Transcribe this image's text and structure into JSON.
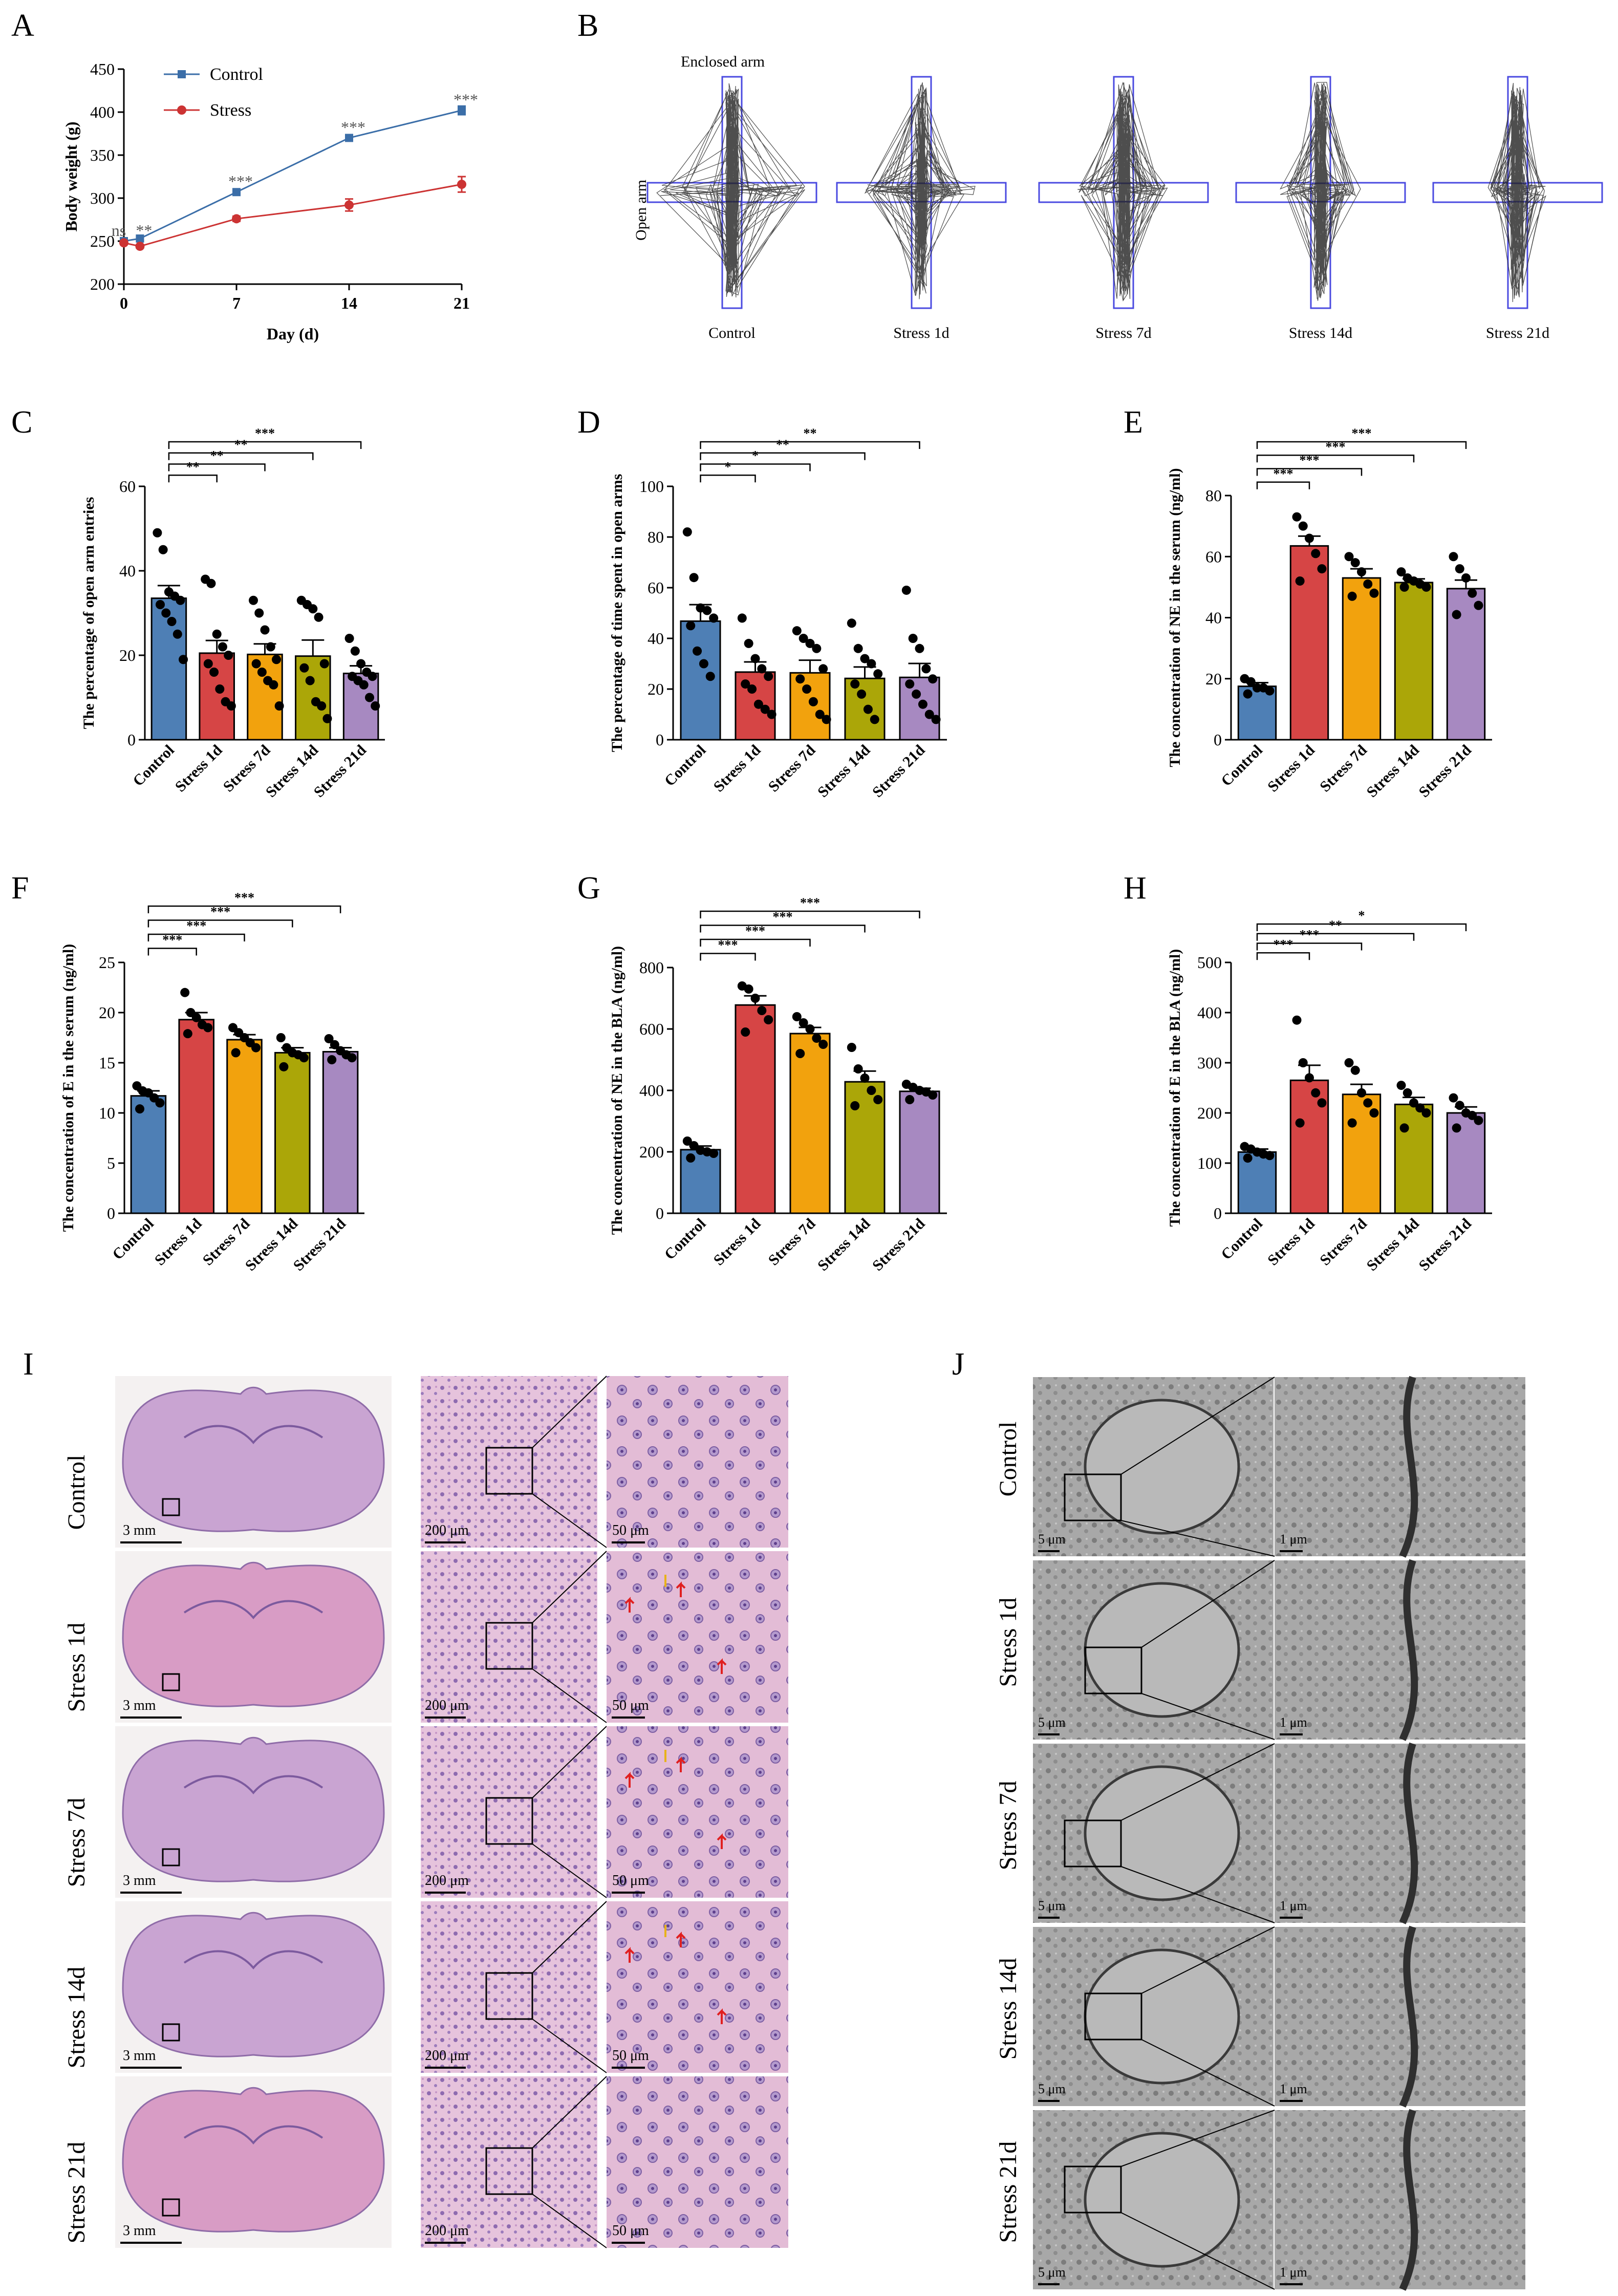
{
  "colors": {
    "control": "#4E7FB5",
    "stress1": "#D64545",
    "stress7": "#F2A20D",
    "stress14": "#ABA608",
    "stress21": "#A789C1",
    "line_control": "#3B6EA8",
    "line_stress": "#CC3333",
    "track_box": "#4A4AE0",
    "tissue": "#D9A6CF",
    "tem": "#9A9A9A"
  },
  "panel_letters": {
    "A": "A",
    "B": "B",
    "C": "C",
    "D": "D",
    "E": "E",
    "F": "F",
    "G": "G",
    "H": "H",
    "I": "I",
    "J": "J"
  },
  "chart_data": [
    {
      "id": "A",
      "type": "line",
      "xlabel": "Day (d)",
      "ylabel": "Body weight (g)",
      "xlim": [
        0,
        21
      ],
      "ylim": [
        200,
        450
      ],
      "xticks": [
        "0",
        "7",
        "14",
        "21"
      ],
      "yticks": [
        "200",
        "250",
        "300",
        "350",
        "400",
        "450"
      ],
      "legend": [
        "Control",
        "Stress"
      ],
      "series": [
        {
          "name": "Control",
          "x": [
            0,
            1,
            7,
            14,
            21
          ],
          "values": [
            250,
            253,
            307,
            370,
            402
          ],
          "err": [
            2,
            2,
            2,
            3,
            5
          ]
        },
        {
          "name": "Stress",
          "x": [
            0,
            1,
            7,
            14,
            21
          ],
          "values": [
            248,
            244,
            276,
            292,
            316
          ],
          "err": [
            2,
            2,
            3,
            7,
            9
          ]
        }
      ],
      "annotations": [
        {
          "label": "ns",
          "x": 0,
          "y": 256
        },
        {
          "label": "**",
          "x": 1,
          "y": 256
        },
        {
          "label": "***",
          "x": 7,
          "y": 313
        },
        {
          "label": "***",
          "x": 14,
          "y": 376
        },
        {
          "label": "***",
          "x": 21,
          "y": 408
        }
      ]
    },
    {
      "id": "C",
      "type": "bar",
      "ylabel": "The percentage of open arm entries",
      "ylim": [
        0,
        60
      ],
      "yticks": [
        "0",
        "20",
        "40",
        "60"
      ],
      "categories": [
        "Control",
        "Stress 1d",
        "Stress 7d",
        "Stress 14d",
        "Stress 21d"
      ],
      "values": [
        33.5,
        20.5,
        20.2,
        19.8,
        15.7
      ],
      "err": [
        3.0,
        3.0,
        2.5,
        3.8,
        1.8
      ],
      "points": [
        [
          49,
          45,
          35,
          34,
          33,
          32,
          30,
          28,
          25,
          19
        ],
        [
          38,
          37,
          25,
          22,
          20,
          18,
          16,
          12,
          9,
          8
        ],
        [
          33,
          30,
          26,
          22,
          19,
          18,
          16,
          14,
          13,
          8
        ],
        [
          33,
          32,
          31,
          29,
          18,
          17,
          14,
          9,
          8,
          5
        ],
        [
          24,
          21,
          18,
          16,
          15,
          15,
          14,
          13,
          10,
          8
        ]
      ],
      "significance": [
        {
          "to": 1,
          "label": "**"
        },
        {
          "to": 2,
          "label": "**"
        },
        {
          "to": 3,
          "label": "**"
        },
        {
          "to": 4,
          "label": "***"
        }
      ]
    },
    {
      "id": "D",
      "type": "bar",
      "ylabel": "The percentage of time spent in open arms",
      "ylim": [
        0,
        100
      ],
      "yticks": [
        "0",
        "20",
        "40",
        "60",
        "80",
        "100"
      ],
      "categories": [
        "Control",
        "Stress 1d",
        "Stress 7d",
        "Stress 14d",
        "Stress 21d"
      ],
      "values": [
        46.8,
        26.7,
        26.4,
        24.2,
        24.6
      ],
      "err": [
        6.5,
        4.0,
        5.0,
        4.5,
        5.5
      ],
      "points": [
        [
          82,
          64,
          52,
          51,
          48,
          45,
          35,
          30,
          25
        ],
        [
          48,
          38,
          32,
          28,
          25,
          22,
          20,
          14,
          12,
          10
        ],
        [
          43,
          40,
          38,
          36,
          28,
          24,
          20,
          15,
          10,
          8
        ],
        [
          46,
          36,
          32,
          30,
          26,
          22,
          18,
          12,
          8
        ],
        [
          59,
          40,
          36,
          28,
          24,
          22,
          18,
          14,
          10,
          8
        ]
      ],
      "significance": [
        {
          "to": 1,
          "label": "*"
        },
        {
          "to": 2,
          "label": "*"
        },
        {
          "to": 3,
          "label": "**"
        },
        {
          "to": 4,
          "label": "**"
        }
      ]
    },
    {
      "id": "E",
      "type": "bar",
      "ylabel": "The concentration of NE in the serum (ng/ml)",
      "ylim": [
        0,
        80
      ],
      "yticks": [
        "0",
        "20",
        "40",
        "60",
        "80"
      ],
      "categories": [
        "Control",
        "Stress 1d",
        "Stress 7d",
        "Stress 14d",
        "Stress 21d"
      ],
      "values": [
        17.5,
        63.5,
        53.0,
        51.5,
        49.5
      ],
      "err": [
        1.2,
        3.2,
        3.0,
        1.2,
        2.8
      ],
      "points": [
        [
          20,
          19,
          17,
          17,
          16,
          15
        ],
        [
          73,
          70,
          66,
          61,
          56,
          52
        ],
        [
          60,
          58,
          55,
          51,
          48,
          47
        ],
        [
          55,
          53,
          52,
          51,
          50,
          50
        ],
        [
          60,
          56,
          53,
          48,
          44,
          41
        ]
      ],
      "significance": [
        {
          "to": 1,
          "label": "***"
        },
        {
          "to": 2,
          "label": "***"
        },
        {
          "to": 3,
          "label": "***"
        },
        {
          "to": 4,
          "label": "***"
        }
      ]
    },
    {
      "id": "F",
      "type": "bar",
      "ylabel": "The concentration of E in the serum (ng/ml)",
      "ylim": [
        0,
        25
      ],
      "yticks": [
        "0",
        "5",
        "10",
        "15",
        "20",
        "25"
      ],
      "categories": [
        "Control",
        "Stress 1d",
        "Stress 7d",
        "Stress 14d",
        "Stress 21d"
      ],
      "values": [
        11.7,
        19.3,
        17.3,
        16.0,
        16.1
      ],
      "err": [
        0.5,
        0.7,
        0.5,
        0.5,
        0.4
      ],
      "points": [
        [
          12.7,
          12.2,
          12.0,
          11.5,
          11.0,
          10.4
        ],
        [
          22.0,
          20.0,
          19.5,
          18.8,
          18.5,
          17.9
        ],
        [
          18.5,
          18.0,
          17.5,
          17.0,
          16.5,
          16.0
        ],
        [
          17.5,
          16.5,
          16.0,
          15.8,
          15.5,
          14.6
        ],
        [
          17.4,
          16.8,
          16.2,
          15.8,
          15.5,
          15.3
        ]
      ],
      "significance": [
        {
          "to": 1,
          "label": "***"
        },
        {
          "to": 2,
          "label": "***"
        },
        {
          "to": 3,
          "label": "***"
        },
        {
          "to": 4,
          "label": "***"
        }
      ]
    },
    {
      "id": "G",
      "type": "bar",
      "ylabel": "The concentration of NE in the BLA (ng/ml)",
      "ylim": [
        0,
        800
      ],
      "yticks": [
        "0",
        "200",
        "400",
        "600",
        "800"
      ],
      "categories": [
        "Control",
        "Stress 1d",
        "Stress 7d",
        "Stress 14d",
        "Stress 21d"
      ],
      "values": [
        207,
        678,
        585,
        428,
        397
      ],
      "err": [
        12,
        30,
        20,
        35,
        10
      ],
      "points": [
        [
          235,
          220,
          205,
          200,
          195,
          180
        ],
        [
          740,
          730,
          700,
          660,
          630,
          590
        ],
        [
          640,
          620,
          600,
          570,
          550,
          520
        ],
        [
          540,
          470,
          440,
          400,
          370,
          350
        ],
        [
          420,
          410,
          400,
          395,
          385,
          370
        ]
      ],
      "significance": [
        {
          "to": 1,
          "label": "***"
        },
        {
          "to": 2,
          "label": "***"
        },
        {
          "to": 3,
          "label": "***"
        },
        {
          "to": 4,
          "label": "***"
        }
      ]
    },
    {
      "id": "H",
      "type": "bar",
      "ylabel": "The concentration of E in the BLA (ng/ml)",
      "ylim": [
        0,
        500
      ],
      "yticks": [
        "0",
        "100",
        "200",
        "300",
        "400",
        "500"
      ],
      "categories": [
        "Control",
        "Stress 1d",
        "Stress 7d",
        "Stress 14d",
        "Stress 21d"
      ],
      "values": [
        122,
        265,
        237,
        217,
        200
      ],
      "err": [
        6,
        30,
        20,
        14,
        12
      ],
      "points": [
        [
          133,
          128,
          122,
          118,
          115,
          110
        ],
        [
          385,
          300,
          270,
          240,
          220,
          180
        ],
        [
          300,
          285,
          240,
          220,
          200,
          180
        ],
        [
          255,
          240,
          220,
          210,
          200,
          170
        ],
        [
          230,
          215,
          200,
          195,
          185,
          170
        ]
      ],
      "significance": [
        {
          "to": 1,
          "label": "***"
        },
        {
          "to": 2,
          "label": "***"
        },
        {
          "to": 3,
          "label": "**"
        },
        {
          "to": 4,
          "label": "*"
        }
      ]
    }
  ],
  "panel_B": {
    "enclosed_arm_label": "Enclosed arm",
    "open_arm_label": "Open arm",
    "groups": [
      "Control",
      "Stress 1d",
      "Stress 7d",
      "Stress 14d",
      "Stress 21d"
    ]
  },
  "panel_I": {
    "rows": [
      "Control",
      "Stress 1d",
      "Stress 7d",
      "Stress 14d",
      "Stress 21d"
    ],
    "scale_bars": [
      "3 mm",
      "200 μm",
      "50 μm"
    ]
  },
  "panel_J": {
    "rows": [
      "Control",
      "Stress 1d",
      "Stress 7d",
      "Stress 14d",
      "Stress 21d"
    ],
    "scale_bars": [
      "5 μm",
      "1 μm"
    ]
  }
}
